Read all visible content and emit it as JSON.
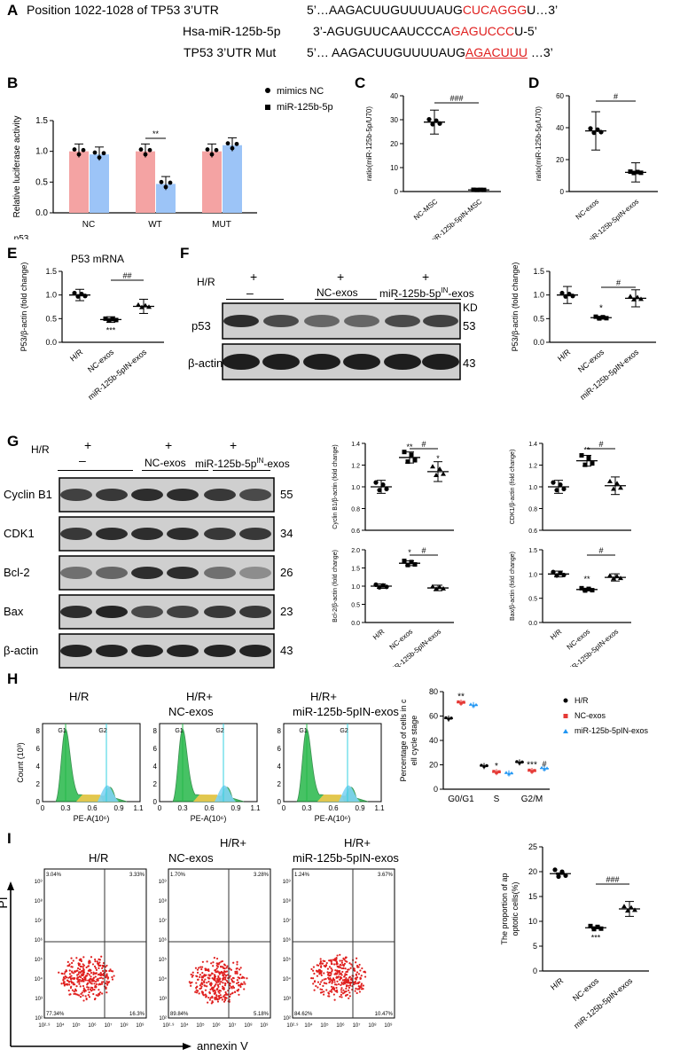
{
  "panelA": {
    "letter": "A",
    "row1_label": "Position 1022-1028 of TP53 3’UTR",
    "row1_seq_pre": "5’…AAGACUUGUUUUAUG",
    "row1_seq_red": "CUCAGGG",
    "row1_seq_post": "U…3’",
    "row2_label": "Hsa-miR-125b-5p",
    "row2_seq_pre": "3’-AGUGUUCAAUCCCA",
    "row2_seq_red": "GAGUCCC",
    "row2_seq_post": "U-5’",
    "row3_label": "TP53 3’UTR Mut",
    "row3_seq_pre": "5’… AAGACUUGUUUUAUG",
    "row3_seq_red": "AGACUUU",
    "row3_seq_post": " …3’"
  },
  "panelB": {
    "letter": "B",
    "significance": "**",
    "x_extra": "p53",
    "legend": [
      "mimics NC",
      "miR-125b-5p"
    ]
  },
  "panelC": {
    "letter": "C",
    "significance": "###"
  },
  "panelD": {
    "letter": "D",
    "significance": "#"
  },
  "panelE": {
    "letter": "E",
    "title": "P53 mRNA",
    "sig1": "***",
    "sig2": "##"
  },
  "panelF": {
    "letter": "F",
    "hr": "H/R",
    "plus": "+",
    "minus": "–",
    "group2": "NC-exos",
    "group3_pre": "miR-125b-5p",
    "group3_sup": "IN",
    "group3_post": "-exos",
    "kd": "KD",
    "rows": [
      {
        "name": "p53",
        "kd": "53"
      },
      {
        "name": "β-actin",
        "kd": "43"
      }
    ],
    "sig1": "*",
    "sig2": "#"
  },
  "panelG": {
    "letter": "G",
    "rows": [
      {
        "name": "Cyclin B1",
        "kd": "55"
      },
      {
        "name": "CDK1",
        "kd": "34"
      },
      {
        "name": "Bcl-2",
        "kd": "26"
      },
      {
        "name": "Bax",
        "kd": "23"
      },
      {
        "name": "β-actin",
        "kd": "43"
      }
    ]
  },
  "panelH": {
    "letter": "H",
    "hist_titles": [
      [
        "H/R",
        ""
      ],
      [
        "H/R+",
        "NC-exos"
      ],
      [
        "H/R+",
        "miR-125b-5pIN-exos"
      ]
    ],
    "count_label": "Count (10³)",
    "pe_label": "PE-A(10⁶)",
    "g1": "G1",
    "g2": "G2",
    "legend": [
      "H/R",
      "NC-exos",
      "miR-125b-5pIN-exos"
    ]
  },
  "panelI": {
    "letter": "I",
    "titles": [
      [
        "",
        "H/R"
      ],
      [
        "H/R+",
        "NC-exos"
      ],
      [
        "H/R+",
        "miR-125b-5pIN-exos"
      ]
    ],
    "quadrants": [
      [
        "3.04%",
        "3.33%",
        "77.34%",
        "16.3%"
      ],
      [
        "1.70%",
        "3.28%",
        "89.84%",
        "5.18%"
      ],
      [
        "1.24%",
        "3.67%",
        "84.62%",
        "10.47%"
      ]
    ],
    "pi_label": "PI",
    "annexin_label": "annexin V"
  },
  "chart_data": [
    {
      "type": "bar",
      "panel": "B",
      "categories": [
        "NC",
        "WT",
        "MUT"
      ],
      "series": [
        {
          "name": "mimics NC",
          "values": [
            1.0,
            1.0,
            1.0
          ]
        },
        {
          "name": "miR-125b-5p",
          "values": [
            0.95,
            0.47,
            1.1
          ]
        }
      ],
      "ylabel": "Relative luciferase activity",
      "ylim": [
        0,
        1.5
      ],
      "yticks": [
        "0.0",
        "0.5",
        "1.0",
        "1.5"
      ],
      "colors": [
        "#f4a3a3",
        "#9cc4f7"
      ]
    },
    {
      "type": "scatter",
      "panel": "C",
      "categories": [
        "NC-MSC",
        "miR-125b-5pIN-MSC"
      ],
      "values": [
        29,
        0.7
      ],
      "ylabel": "ratio(miR-125b-5p/U70)",
      "ylim": [
        0,
        40
      ],
      "yticks": [
        "0",
        "10",
        "20",
        "30",
        "40"
      ]
    },
    {
      "type": "scatter",
      "panel": "D",
      "categories": [
        "NC-exos",
        "miR-125b-5pIN-exos"
      ],
      "values": [
        38,
        12
      ],
      "ylabel": "ratio(miR-125b-5p/U70)",
      "ylim": [
        0,
        60
      ],
      "yticks": [
        "0",
        "20",
        "40",
        "60"
      ]
    },
    {
      "type": "scatter",
      "panel": "E",
      "categories": [
        "H/R",
        "NC-exos",
        "miR-125b-5pIN-exos"
      ],
      "values": [
        1.0,
        0.48,
        0.76
      ],
      "ylabel": "P53/β-actin (fold change)",
      "ylim": [
        0,
        1.5
      ],
      "yticks": [
        "0.0",
        "0.5",
        "1.0",
        "1.5"
      ]
    },
    {
      "type": "scatter",
      "panel": "F",
      "categories": [
        "H/R",
        "NC-exos",
        "miR-125b-5pIN-exos"
      ],
      "values": [
        1.0,
        0.52,
        0.93
      ],
      "ylabel": "P53/β-actin (fold change)",
      "ylim": [
        0,
        1.5
      ],
      "yticks": [
        "0.0",
        "0.5",
        "1.0",
        "1.5"
      ]
    },
    {
      "type": "scatter",
      "panel": "G-CyclinB1",
      "categories": [
        "H/R",
        "NC-exos",
        "miR-125b-5pIN-exos"
      ],
      "values": [
        1.0,
        1.27,
        1.14
      ],
      "ylabel": "Cyclin B1/β-actin (fold change)",
      "ylim": [
        0.6,
        1.4
      ],
      "yticks": [
        "0.6",
        "0.8",
        "1.0",
        "1.2",
        "1.4"
      ]
    },
    {
      "type": "scatter",
      "panel": "G-CDK1",
      "categories": [
        "H/R",
        "NC-exos",
        "miR-125b-5pIN-exos"
      ],
      "values": [
        1.0,
        1.24,
        1.01
      ],
      "ylabel": "CDK1/β-actin (fold change)",
      "ylim": [
        0.6,
        1.4
      ],
      "yticks": [
        "0.6",
        "0.8",
        "1.0",
        "1.2",
        "1.4"
      ]
    },
    {
      "type": "scatter",
      "panel": "G-Bcl2",
      "categories": [
        "H/R",
        "NC-exos",
        "miR-125b-5pIN-exos"
      ],
      "values": [
        1.0,
        1.63,
        0.95
      ],
      "ylabel": "Bcl-2/β-actin (fold change)",
      "ylim": [
        0.0,
        2.0
      ],
      "yticks": [
        "0.0",
        "0.5",
        "1.0",
        "1.5",
        "2.0"
      ]
    },
    {
      "type": "scatter",
      "panel": "G-Bax",
      "categories": [
        "H/R",
        "NC-exos",
        "miR-125b-5pIN-exos"
      ],
      "values": [
        1.0,
        0.68,
        0.93
      ],
      "ylabel": "Bax/β-actin (fold change)",
      "ylim": [
        0.0,
        1.5
      ],
      "yticks": [
        "0.0",
        "0.5",
        "1.0",
        "1.5"
      ]
    },
    {
      "type": "scatter",
      "panel": "H",
      "categories": [
        "G0/G1",
        "S",
        "G2/M"
      ],
      "series": [
        {
          "name": "H/R",
          "values": [
            58,
            19,
            22
          ]
        },
        {
          "name": "NC-exos",
          "values": [
            71,
            14,
            15
          ]
        },
        {
          "name": "miR-125b-5pIN-exos",
          "values": [
            69,
            13,
            17
          ]
        }
      ],
      "ylabel": "Percentage of cells in cell cycle stage",
      "ylim": [
        0,
        80
      ],
      "yticks": [
        "0",
        "20",
        "40",
        "60",
        "80"
      ],
      "colors": [
        "#000000",
        "#e53935",
        "#2196f3"
      ]
    },
    {
      "type": "scatter",
      "panel": "I",
      "categories": [
        "H/R",
        "NC-exos",
        "miR-125b-5pIN-exos"
      ],
      "values": [
        19.6,
        8.7,
        12.5
      ],
      "ylabel": "The proportion of apoptotic cells(%)",
      "ylim": [
        0,
        25
      ],
      "yticks": [
        "0",
        "5",
        "10",
        "15",
        "20",
        "25"
      ]
    }
  ]
}
